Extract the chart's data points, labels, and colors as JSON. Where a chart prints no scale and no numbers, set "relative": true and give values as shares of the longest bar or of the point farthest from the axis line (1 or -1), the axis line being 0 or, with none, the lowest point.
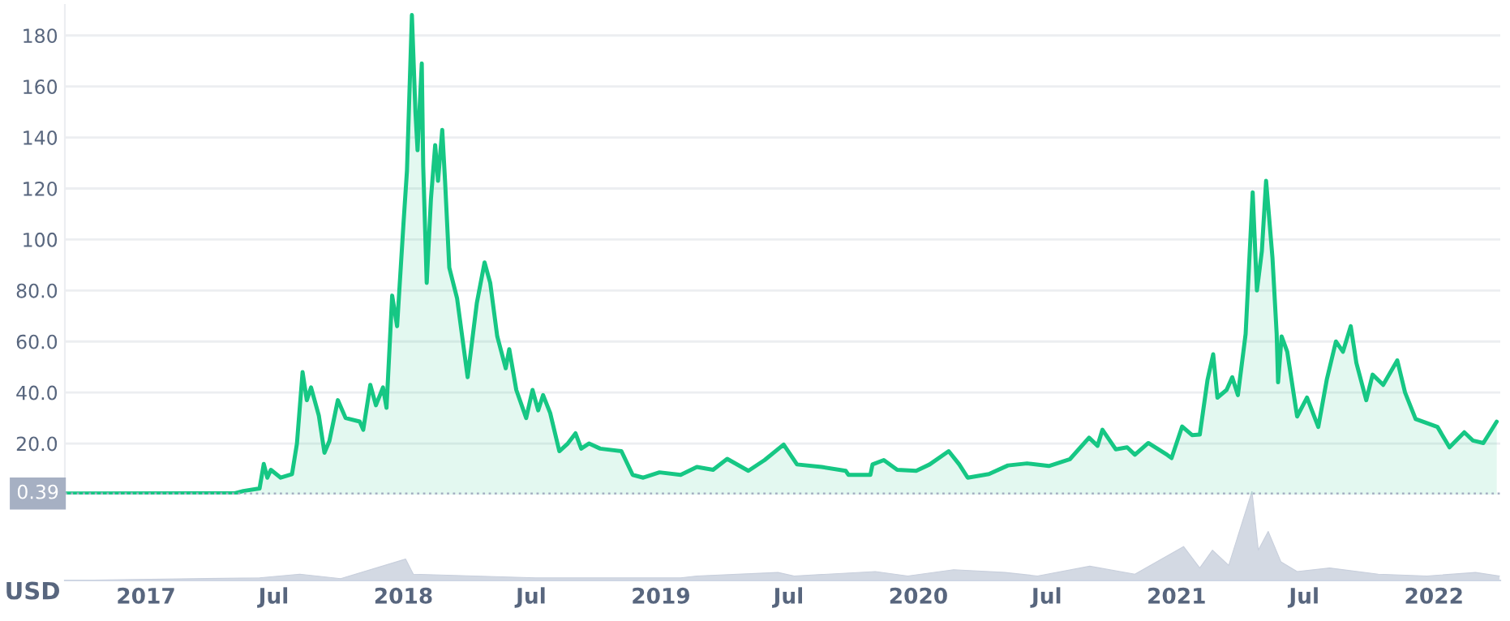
{
  "chart_data": [
    {
      "type": "area",
      "xlim": [
        "2016-09-08",
        "2022-04-05"
      ],
      "ylim": [
        0,
        192
      ],
      "yticks": [
        {
          "value": 20,
          "label": "20.0"
        },
        {
          "value": 40,
          "label": "40.0"
        },
        {
          "value": 60,
          "label": "60.0"
        },
        {
          "value": 80,
          "label": "80.0"
        },
        100,
        120,
        140,
        160,
        180
      ],
      "tick_labels": "y",
      "grid": "y",
      "ref_lines": [
        {
          "axis": "y",
          "value": 0.39,
          "label": "0.39",
          "color": "#a6b0c3",
          "line_style": "dotted"
        }
      ],
      "series": [
        {
          "color": "#16c784",
          "x": [
            "2016-09-08",
            "2017-05-07",
            "2017-05-19",
            "2017-06-11",
            "2017-06-17",
            "2017-06-22",
            "2017-06-27",
            "2017-07-11",
            "2017-07-27",
            "2017-08-03",
            "2017-08-11",
            "2017-08-17",
            "2017-08-23",
            "2017-09-03",
            "2017-09-11",
            "2017-09-18",
            "2017-09-30",
            "2017-10-11",
            "2017-10-31",
            "2017-11-05",
            "2017-11-15",
            "2017-11-23",
            "2017-12-03",
            "2017-12-08",
            "2017-12-16",
            "2017-12-23",
            "2018-01-01",
            "2018-01-06",
            "2018-01-13",
            "2018-01-18",
            "2018-01-21",
            "2018-01-27",
            "2018-01-29",
            "2018-02-03",
            "2018-02-09",
            "2018-02-15",
            "2018-02-19",
            "2018-02-25",
            "2018-03-01",
            "2018-03-07",
            "2018-03-18",
            "2018-04-02",
            "2018-04-15",
            "2018-04-26",
            "2018-05-04",
            "2018-05-14",
            "2018-05-26",
            "2018-05-31",
            "2018-06-10",
            "2018-06-24",
            "2018-07-03",
            "2018-07-11",
            "2018-07-18",
            "2018-07-28",
            "2018-08-10",
            "2018-08-22",
            "2018-09-02",
            "2018-09-10",
            "2018-09-21",
            "2018-10-07",
            "2018-11-06",
            "2018-11-22",
            "2018-12-07",
            "2018-12-30",
            "2019-01-29",
            "2019-02-21",
            "2019-03-16",
            "2019-04-05",
            "2019-05-05",
            "2019-05-28",
            "2019-06-24",
            "2019-07-13",
            "2019-08-17",
            "2019-09-20",
            "2019-09-24",
            "2019-10-25",
            "2019-10-28",
            "2019-11-13",
            "2019-12-02",
            "2019-12-29",
            "2020-01-17",
            "2020-02-13",
            "2020-02-28",
            "2020-03-11",
            "2020-04-10",
            "2020-05-07",
            "2020-06-03",
            "2020-07-04",
            "2020-08-03",
            "2020-08-30",
            "2020-09-11",
            "2020-09-18",
            "2020-10-07",
            "2020-10-23",
            "2020-11-03",
            "2020-11-22",
            "2020-12-19",
            "2020-12-25",
            "2021-01-09",
            "2021-01-23",
            "2021-02-03",
            "2021-02-14",
            "2021-02-22",
            "2021-02-28",
            "2021-03-13",
            "2021-03-21",
            "2021-03-29",
            "2021-04-09",
            "2021-04-19",
            "2021-04-25",
            "2021-05-02",
            "2021-05-08",
            "2021-05-17",
            "2021-05-23",
            "2021-05-25",
            "2021-05-30",
            "2021-06-07",
            "2021-06-21",
            "2021-07-05",
            "2021-07-21",
            "2021-08-02",
            "2021-08-15",
            "2021-08-25",
            "2021-09-05",
            "2021-09-13",
            "2021-09-27",
            "2021-10-06",
            "2021-10-21",
            "2021-11-10",
            "2021-11-21",
            "2021-12-06",
            "2021-12-22",
            "2022-01-06",
            "2022-01-23",
            "2022-02-13",
            "2022-02-25",
            "2022-03-12",
            "2022-03-31"
          ],
          "values": [
            0.4,
            0.5,
            1.4,
            2.4,
            12,
            6.6,
            9.7,
            6.6,
            8,
            20,
            48,
            37,
            42,
            31,
            16.4,
            21,
            37,
            30,
            28.6,
            25.4,
            43,
            35,
            42,
            34,
            78,
            66,
            106,
            127,
            188,
            150,
            135,
            169,
            129,
            83,
            116,
            137,
            123,
            143,
            123,
            89,
            77,
            46,
            75,
            91,
            83,
            62,
            49.5,
            57,
            41,
            30,
            41,
            33,
            39,
            32,
            17,
            20,
            24,
            18,
            20,
            18,
            17,
            7.7,
            6.6,
            8.7,
            7.7,
            10.8,
            9.7,
            14,
            9.3,
            13.5,
            19.6,
            11.8,
            10.8,
            9.3,
            7.7,
            7.7,
            11.8,
            13.5,
            9.7,
            9.3,
            11.8,
            17,
            11.8,
            6.6,
            8,
            11.4,
            12.2,
            11.2,
            13.9,
            22.3,
            19.1,
            25.4,
            17.7,
            18.5,
            15.6,
            20.2,
            15.5,
            14.3,
            26.7,
            23.3,
            23.5,
            45,
            55,
            38,
            41,
            46,
            39,
            63,
            118.5,
            80,
            95.5,
            123,
            93,
            63,
            44,
            62,
            56,
            30.6,
            38,
            26.5,
            45,
            60,
            56,
            66,
            51.6,
            37,
            47,
            43,
            52.6,
            40,
            29.6,
            28,
            26.5,
            18.5,
            24.4,
            21.2,
            20.2,
            28.6
          ]
        }
      ]
    },
    {
      "type": "area",
      "relative": true,
      "xlim": [
        "2016-09-08",
        "2022-04-05"
      ],
      "tick_labels": "x",
      "xticks": [
        {
          "value": "2017-01-01",
          "label": "2017"
        },
        {
          "value": "2017-07-01",
          "label": "Jul"
        },
        {
          "value": "2018-01-01",
          "label": "2018"
        },
        {
          "value": "2018-07-01",
          "label": "Jul"
        },
        {
          "value": "2019-01-01",
          "label": "2019"
        },
        {
          "value": "2019-07-01",
          "label": "Jul"
        },
        {
          "value": "2020-01-01",
          "label": "2020"
        },
        {
          "value": "2020-07-01",
          "label": "Jul"
        },
        {
          "value": "2021-01-01",
          "label": "2021"
        },
        {
          "value": "2021-07-01",
          "label": "Jul"
        },
        {
          "value": "2022-01-01",
          "label": "2022"
        }
      ],
      "annotations": [
        "USD"
      ],
      "series": [
        {
          "color": "#c8cfdc",
          "x": [
            "2016-09-08",
            "2017-06-11",
            "2017-08-07",
            "2017-10-04",
            "2018-01-04",
            "2018-01-15",
            "2018-07-07",
            "2019-01-29",
            "2019-02-21",
            "2019-06-16",
            "2019-07-09",
            "2019-11-01",
            "2019-12-17",
            "2020-02-20",
            "2020-05-03",
            "2020-06-18",
            "2020-08-31",
            "2020-11-03",
            "2021-01-11",
            "2021-02-03",
            "2021-02-21",
            "2021-03-16",
            "2021-04-18",
            "2021-04-27",
            "2021-05-11",
            "2021-05-29",
            "2021-06-21",
            "2021-08-06",
            "2021-10-14",
            "2021-12-22",
            "2022-03-01",
            "2022-04-04"
          ],
          "values": [
            0,
            0.03,
            0.07,
            0.02,
            0.24,
            0.07,
            0.03,
            0.03,
            0.05,
            0.09,
            0.05,
            0.1,
            0.05,
            0.12,
            0.09,
            0.05,
            0.16,
            0.07,
            0.38,
            0.14,
            0.34,
            0.17,
            1,
            0.34,
            0.55,
            0.21,
            0.1,
            0.14,
            0.07,
            0.05,
            0.09,
            0.05
          ]
        }
      ]
    }
  ]
}
